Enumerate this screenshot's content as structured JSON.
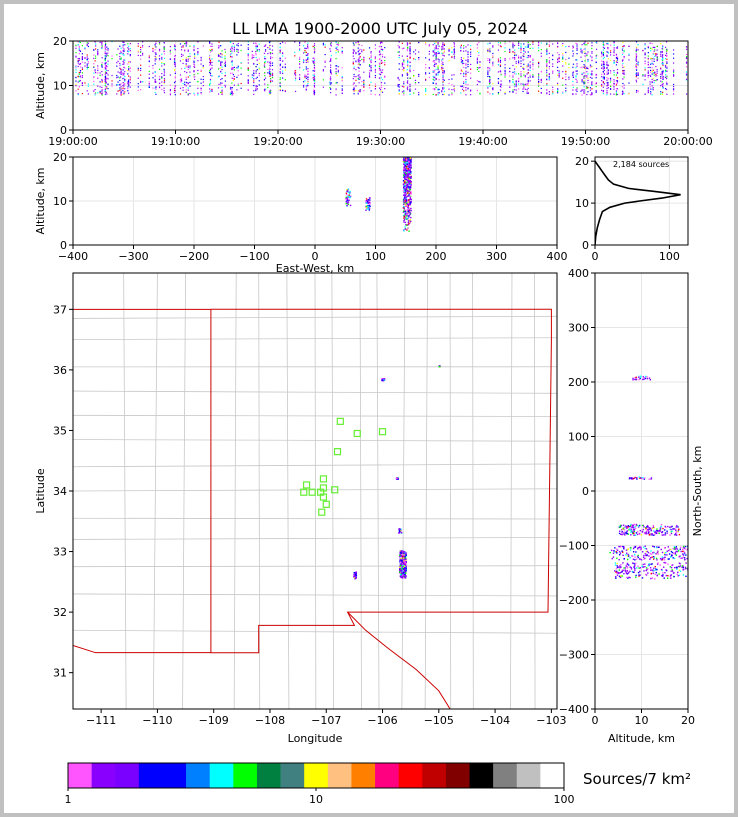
{
  "title": "LL LMA 1900-2000 UTC July 05, 2024",
  "colors": {
    "colorbar": [
      "#ff55ff",
      "#8a00ff",
      "#7a00ff",
      "#0000ff",
      "#0000ff",
      "#0080ff",
      "#00ffff",
      "#00ff00",
      "#008040",
      "#408080",
      "#ffff00",
      "#ffc080",
      "#ff8000",
      "#ff0080",
      "#ff0000",
      "#c00000",
      "#800000",
      "#000000",
      "#808080",
      "#c0c0c0",
      "#ffffff"
    ],
    "boundary_state": "#cc0000",
    "boundary_county": "#c8c8c8",
    "station": "#66ee33"
  },
  "chart_data": [
    {
      "id": "time-height",
      "type": "scatter",
      "ylabel": "Altitude, km",
      "xlim": [
        "19:00:00",
        "20:00:00"
      ],
      "ylim": [
        0,
        20
      ],
      "xticks": [
        "19:00:00",
        "19:10:00",
        "19:20:00",
        "19:30:00",
        "19:40:00",
        "19:50:00",
        "20:00:00"
      ],
      "yticks": [
        "0",
        "10",
        "20"
      ],
      "grid": true,
      "note_dense_band_km": [
        8,
        20
      ]
    },
    {
      "id": "ew-height",
      "type": "scatter",
      "xlabel": "East-West, km",
      "ylabel": "Altitude, km",
      "xlim": [
        -400,
        400
      ],
      "ylim": [
        0,
        20
      ],
      "xticks": [
        "−400",
        "−300",
        "−200",
        "−100",
        "0",
        "100",
        "200",
        "300",
        "400"
      ],
      "yticks": [
        "0",
        "10",
        "20"
      ],
      "grid": true,
      "clusters_ew_km": [
        [
          145,
          158,
          3,
          20
        ],
        [
          50,
          58,
          9,
          13
        ],
        [
          83,
          90,
          8,
          11
        ]
      ]
    },
    {
      "id": "alt-histogram",
      "type": "line",
      "annotation": "2,184 sources",
      "xlim": [
        0,
        125
      ],
      "ylim": [
        0,
        21
      ],
      "xticks": [
        "0",
        "100"
      ],
      "yticks": [
        "0",
        "10",
        "20"
      ],
      "profile": [
        [
          0,
          0
        ],
        [
          1,
          2
        ],
        [
          3,
          4
        ],
        [
          6,
          6
        ],
        [
          10,
          8
        ],
        [
          20,
          9
        ],
        [
          40,
          10
        ],
        [
          60,
          10.5
        ],
        [
          90,
          11.2
        ],
        [
          115,
          12
        ],
        [
          80,
          12.8
        ],
        [
          45,
          13.5
        ],
        [
          25,
          14.5
        ],
        [
          18,
          15.5
        ],
        [
          14,
          16.5
        ],
        [
          10,
          17.5
        ],
        [
          6,
          18.5
        ],
        [
          2,
          19.5
        ],
        [
          0,
          20
        ]
      ]
    },
    {
      "id": "plan-view",
      "type": "scatter",
      "xlabel": "Longitude",
      "ylabel": "Latitude",
      "xlim": [
        -111.5,
        -102.9
      ],
      "ylim": [
        30.4,
        37.6
      ],
      "xticks": [
        "−111",
        "−110",
        "−109",
        "−108",
        "−107",
        "−106",
        "−105",
        "−104",
        "−103"
      ],
      "yticks": [
        "31",
        "32",
        "33",
        "34",
        "35",
        "36",
        "37"
      ],
      "stations": [
        [
          -106.75,
          35.15
        ],
        [
          -106.45,
          34.95
        ],
        [
          -106.0,
          34.98
        ],
        [
          -106.8,
          34.65
        ],
        [
          -107.05,
          34.2
        ],
        [
          -107.35,
          34.1
        ],
        [
          -107.05,
          34.05
        ],
        [
          -107.4,
          33.98
        ],
        [
          -107.25,
          33.98
        ],
        [
          -107.1,
          33.98
        ],
        [
          -106.85,
          34.02
        ],
        [
          -107.05,
          33.9
        ],
        [
          -107.0,
          33.78
        ],
        [
          -107.08,
          33.65
        ]
      ],
      "source_clusters": [
        [
          -105.65,
          32.8,
          0.12,
          0.45
        ],
        [
          -106.5,
          32.62,
          0.05,
          0.12
        ],
        [
          -105.7,
          33.35,
          0.05,
          0.07
        ],
        [
          -106.0,
          35.85,
          0.05,
          0.03
        ],
        [
          -105.75,
          34.22,
          0.03,
          0.02
        ],
        [
          -105.0,
          36.07,
          0.01,
          0.01
        ]
      ]
    },
    {
      "id": "ns-height",
      "type": "scatter",
      "xlabel": "Altitude, km",
      "ylabel": "North-South, km",
      "xlim": [
        0,
        20
      ],
      "ylim": [
        -400,
        400
      ],
      "xticks": [
        "0",
        "10",
        "20"
      ],
      "yticks": [
        "−400",
        "−300",
        "−200",
        "−100",
        "0",
        "100",
        "200",
        "300",
        "400"
      ],
      "grid": true,
      "clusters_ns_km": [
        [
          8,
          12,
          205,
          212
        ],
        [
          7,
          12,
          23,
          27
        ],
        [
          5,
          18,
          -80,
          -60
        ],
        [
          3,
          20,
          -125,
          -100
        ],
        [
          4,
          20,
          -160,
          -130
        ]
      ]
    },
    {
      "id": "colorbar",
      "type": "heatmap",
      "label": "Sources/7 km²",
      "ticks": [
        "1",
        "10",
        "100"
      ],
      "scale": "log"
    }
  ]
}
